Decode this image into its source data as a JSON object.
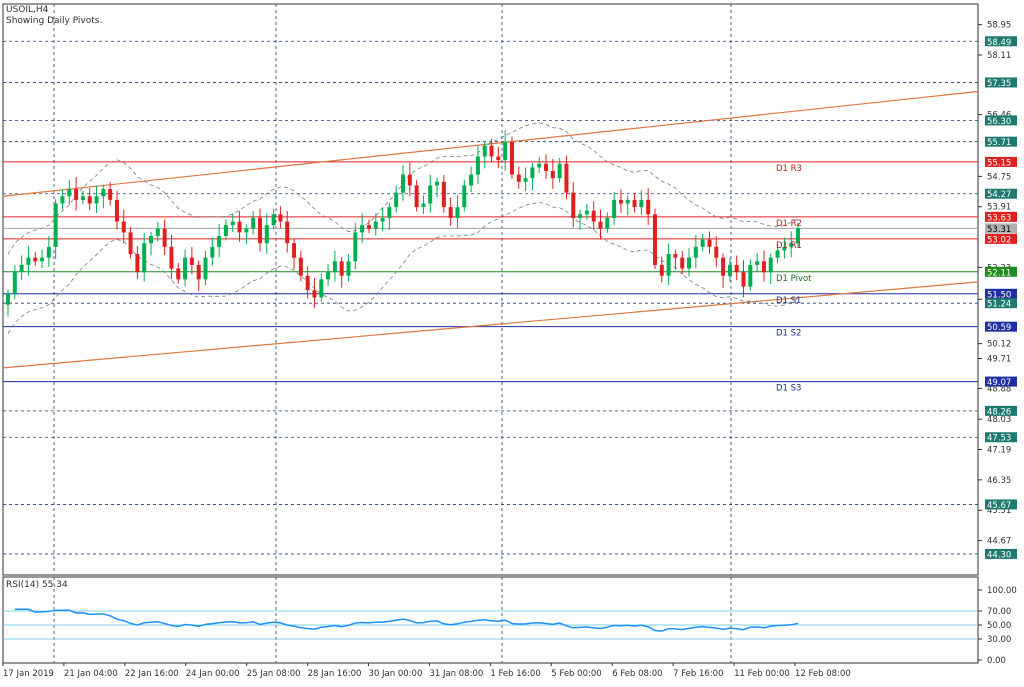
{
  "header": {
    "symbol": "USOIL,H4",
    "subtitle": "Showing Daily Pivots."
  },
  "colors": {
    "up_candle": "#00b050",
    "down_candle": "#e02020",
    "trendline": "#e07840",
    "grid": "#1f3a7a",
    "resistance": "#e02020",
    "support": "#1f2fa0",
    "pivot": "#1e8c1e",
    "rsi_line": "#1e90ff",
    "rsi_levels": "#7fd0e8",
    "axis_text": "#303030",
    "label_box": "#1e7a70",
    "current_price_box": "#b0b0b0"
  },
  "chart_data": [
    {
      "type": "candlestick",
      "symbol": "USOIL",
      "timeframe": "H4",
      "ylim": [
        43.8,
        59.3
      ],
      "y_ticks": [
        "58.95",
        "58.11",
        "56.46",
        "54.75",
        "53.91",
        "52.23",
        "51.35",
        "50.12",
        "49.71",
        "48.88",
        "48.03",
        "47.19",
        "46.35",
        "45.51",
        "44.67"
      ],
      "x_ticks": [
        "17 Jan 2019",
        "21 Jan 04:00",
        "22 Jan 16:00",
        "24 Jan 00:00",
        "25 Jan 08:00",
        "28 Jan 16:00",
        "30 Jan 00:00",
        "31 Jan 08:00",
        "1 Feb 16:00",
        "5 Feb 00:00",
        "6 Feb 08:00",
        "7 Feb 16:00",
        "11 Feb 00:00",
        "12 Feb 08:00"
      ],
      "close": [
        51.5,
        52.1,
        52.3,
        52.5,
        52.4,
        52.5,
        52.8,
        54.0,
        54.2,
        54.4,
        54.1,
        54.2,
        54.0,
        54.2,
        54.4,
        54.1,
        53.5,
        53.2,
        52.6,
        52.1,
        52.9,
        53.1,
        53.3,
        52.8,
        52.2,
        51.9,
        52.5,
        52.3,
        51.9,
        52.5,
        52.8,
        53.1,
        53.4,
        53.5,
        53.2,
        53.3,
        53.6,
        52.9,
        53.4,
        53.7,
        53.5,
        52.9,
        52.5,
        52.0,
        51.6,
        51.4,
        51.9,
        52.1,
        52.4,
        52.0,
        52.4,
        53.2,
        53.4,
        53.3,
        53.5,
        53.6,
        53.9,
        54.3,
        54.8,
        54.5,
        53.9,
        54.0,
        54.5,
        54.6,
        53.9,
        53.6,
        53.9,
        54.5,
        54.8,
        55.3,
        55.6,
        55.3,
        55.2,
        55.7,
        54.8,
        54.6,
        54.7,
        55.0,
        55.1,
        54.9,
        54.7,
        55.1,
        54.3,
        53.6,
        53.7,
        53.8,
        53.5,
        53.3,
        53.6,
        54.1,
        54.0,
        54.1,
        53.9,
        54.1,
        53.7,
        52.3,
        52.0,
        52.6,
        52.5,
        52.2,
        52.5,
        52.8,
        53.0,
        52.8,
        52.5,
        52.0,
        52.3,
        52.1,
        51.7,
        52.3,
        52.4,
        52.1,
        52.5,
        52.7,
        52.8,
        52.9,
        53.31
      ],
      "rsi": {
        "label": "RSI(14) 55.34",
        "period": 14,
        "current": 55.34,
        "ylim": [
          0,
          100
        ],
        "ticks": [
          "100.00",
          "70.00",
          "50.00",
          "30.00",
          "0.00"
        ],
        "levels": [
          70,
          50,
          30
        ]
      }
    }
  ],
  "price_levels": [
    {
      "price": 58.49,
      "label": "58.49",
      "role": "grid"
    },
    {
      "price": 57.35,
      "label": "57.35",
      "role": "grid"
    },
    {
      "price": 56.3,
      "label": "56.30",
      "role": "grid"
    },
    {
      "price": 55.71,
      "label": "55.71",
      "role": "grid"
    },
    {
      "price": 55.15,
      "label": "55.15",
      "role": "resistance"
    },
    {
      "price": 54.27,
      "label": "54.27",
      "role": "grid"
    },
    {
      "price": 53.63,
      "label": "53.63",
      "role": "resistance"
    },
    {
      "price": 53.31,
      "label": "53.31",
      "role": "current"
    },
    {
      "price": 53.02,
      "label": "53.02",
      "role": "resistance"
    },
    {
      "price": 52.11,
      "label": "52.11",
      "role": "pivot"
    },
    {
      "price": 51.5,
      "label": "51.50",
      "role": "support"
    },
    {
      "price": 51.24,
      "label": "51.24",
      "role": "grid"
    },
    {
      "price": 50.59,
      "label": "50.59",
      "role": "support"
    },
    {
      "price": 49.07,
      "label": "49.07",
      "role": "support"
    },
    {
      "price": 48.26,
      "label": "48.26",
      "role": "grid"
    },
    {
      "price": 47.53,
      "label": "47.53",
      "role": "grid"
    },
    {
      "price": 45.67,
      "label": "45.67",
      "role": "grid"
    },
    {
      "price": 44.3,
      "label": "44.30",
      "role": "grid"
    }
  ],
  "pivots": [
    {
      "name": "D1 R3",
      "price": 55.15
    },
    {
      "name": "D1 R2",
      "price": 53.63
    },
    {
      "name": "D1 R1",
      "price": 53.02
    },
    {
      "name": "D1 Pivot",
      "price": 52.11
    },
    {
      "name": "D1 S1",
      "price": 51.5
    },
    {
      "name": "D1 S2",
      "price": 50.59
    },
    {
      "name": "D1 S3",
      "price": 49.07
    }
  ],
  "trendlines": [
    {
      "name": "upper-channel",
      "from": 54.2,
      "to": 57.1
    },
    {
      "name": "lower-channel",
      "from": 49.45,
      "to": 51.83
    }
  ]
}
